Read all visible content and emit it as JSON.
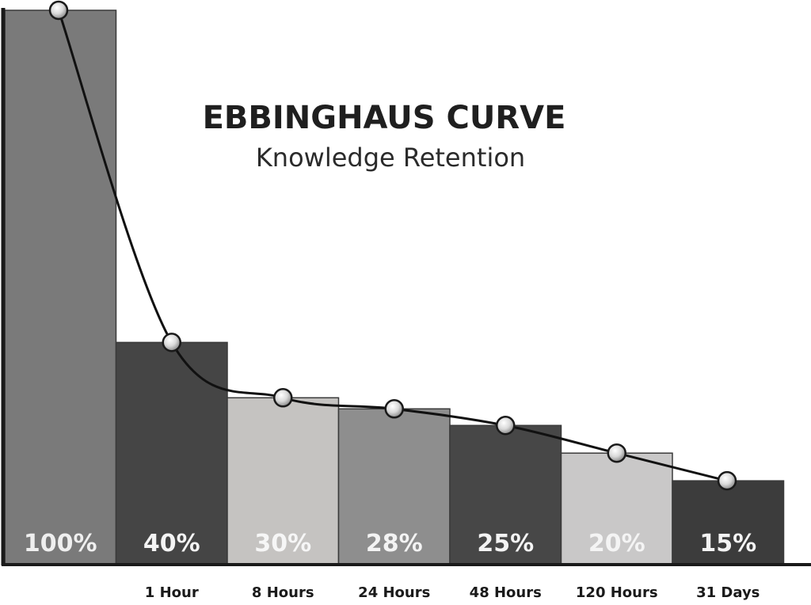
{
  "chart_data": {
    "type": "bar",
    "title": "EBBINGHAUS CURVE",
    "subtitle": "Knowledge Retention",
    "categories": [
      "",
      "1 Hour",
      "8 Hours",
      "24 Hours",
      "48 Hours",
      "120 Hours",
      "31 Days"
    ],
    "values": [
      100,
      40,
      30,
      28,
      25,
      20,
      15
    ],
    "value_labels": [
      "100%",
      "40%",
      "30%",
      "28%",
      "25%",
      "20%",
      "15%"
    ],
    "ylim": [
      0,
      100
    ],
    "grid": false,
    "legend": "none",
    "bar_colors": [
      "#7a7a7a",
      "#454545",
      "#c5c3c1",
      "#8e8e8e",
      "#474747",
      "#c9c8c8",
      "#3c3c3c"
    ],
    "label_colors": [
      "#efefef",
      "#f4f4f4",
      "#f6f6f6",
      "#f3f3f3",
      "#f4f4f4",
      "#f4f4f4",
      "#f4f4f4"
    ],
    "curve_color": "#111111",
    "axis_color": "#1a1a1a"
  }
}
